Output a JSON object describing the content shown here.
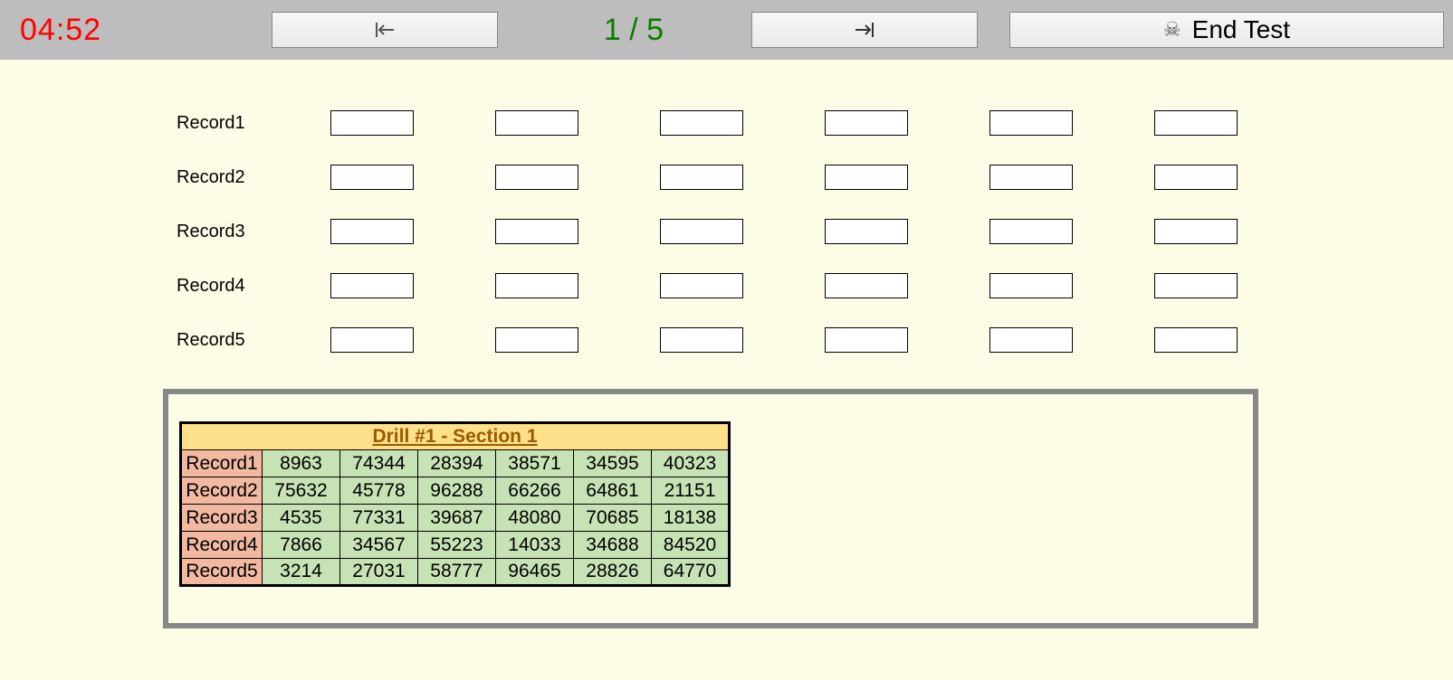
{
  "topbar": {
    "timer": "04:52",
    "progress": "1 / 5",
    "end_test_label": "End Test"
  },
  "input_grid": {
    "row_labels": [
      "Record1",
      "Record2",
      "Record3",
      "Record4",
      "Record5"
    ],
    "columns": 6
  },
  "reference": {
    "title": "Drill #1 - Section 1",
    "row_labels": [
      "Record1",
      "Record2",
      "Record3",
      "Record4",
      "Record5"
    ],
    "rows": [
      [
        "8963",
        "74344",
        "28394",
        "38571",
        "34595",
        "40323"
      ],
      [
        "75632",
        "45778",
        "96288",
        "66266",
        "64861",
        "21151"
      ],
      [
        "4535",
        "77331",
        "39687",
        "48080",
        "70685",
        "18138"
      ],
      [
        "7866",
        "34567",
        "55223",
        "14033",
        "34688",
        "84520"
      ],
      [
        "3214",
        "27031",
        "58777",
        "96465",
        "28826",
        "64770"
      ]
    ],
    "colors": {
      "title_bg": "#ffe08a",
      "title_fg": "#9a5a00",
      "label_bg": "#f2b8a0",
      "data_bg": "#c7e2b5",
      "border": "#000000"
    }
  },
  "page_bg": "#fdfde7",
  "topbar_bg": "#bdbdbd"
}
